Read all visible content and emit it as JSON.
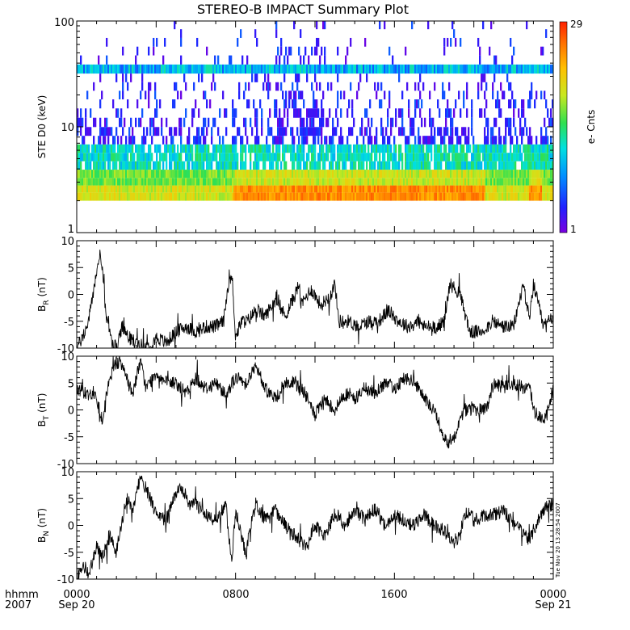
{
  "chart_data": {
    "title": "STEREO-B IMPACT Summary Plot",
    "panels": [
      {
        "type": "heatmap",
        "ylabel": "STE D0 (keV)",
        "yscale": "log",
        "ylim": [
          1,
          100
        ],
        "yticks": [
          "100",
          "10",
          "1"
        ],
        "colorbar": {
          "label": "e- Cnts",
          "min": 1,
          "max": 29,
          "min_label": "1",
          "max_label": "29",
          "colormap": [
            "#7a00e0",
            "#2020ff",
            "#0090ff",
            "#00e0e0",
            "#30e050",
            "#c8e820",
            "#ffc000",
            "#ff7000",
            "#ff2000"
          ]
        },
        "energy_bands_keV": [
          2.2,
          2.6,
          3.0,
          3.6,
          4.3,
          5.2,
          6.2,
          7.5,
          9,
          11,
          13.5,
          16.5,
          20,
          24,
          29,
          35,
          43,
          52,
          63,
          76,
          92
        ],
        "hot_period_hours": [
          [
            7.9,
            20.6
          ],
          [
            22.8,
            23.4
          ]
        ],
        "persistent_band_keV": 35
      },
      {
        "type": "line",
        "ylabel": "B",
        "ylabel_sub": "R",
        "ylabel_unit": "(nT)",
        "ylim": [
          -10,
          10
        ],
        "yticks": [
          "10",
          "5",
          "0",
          "-5",
          "-10"
        ],
        "x_hours": [
          0,
          0.3,
          0.6,
          0.9,
          1.2,
          1.5,
          1.8,
          2.0,
          2.3,
          2.6,
          3.0,
          3.5,
          4.0,
          4.5,
          5.0,
          5.5,
          6.0,
          6.5,
          7.0,
          7.4,
          7.7,
          7.85,
          8.0,
          8.3,
          8.6,
          9.0,
          9.5,
          10.0,
          10.5,
          11.0,
          11.2,
          11.3,
          11.8,
          12.3,
          12.8,
          13.0,
          13.2,
          13.7,
          14.2,
          14.7,
          15.2,
          15.7,
          16.2,
          16.7,
          17.2,
          17.5,
          17.7,
          18.2,
          18.5,
          18.8,
          19.3,
          19.8,
          20.3,
          20.7,
          20.9,
          21.5,
          22.0,
          22.5,
          22.8,
          23.0,
          23.5,
          24.0
        ],
        "values": [
          -10,
          -8,
          -5,
          2,
          8,
          -5,
          -9,
          -10,
          -6,
          -8,
          -9,
          -10,
          -8,
          -9,
          -7,
          -6,
          -7,
          -6,
          -6,
          -5,
          4,
          2,
          -8,
          -5,
          -5,
          -3,
          -4,
          -1,
          -4,
          0,
          2,
          -2,
          1,
          -2,
          0,
          2,
          -5,
          -5,
          -6,
          -5,
          -5,
          -3,
          -5,
          -6,
          -5,
          -6,
          -6,
          -6,
          -5,
          2,
          0,
          -7,
          -7,
          -6,
          -5,
          -6,
          -6,
          2,
          -5,
          2,
          -6,
          -4
        ]
      },
      {
        "type": "line",
        "ylabel": "B",
        "ylabel_sub": "T",
        "ylabel_unit": "(nT)",
        "ylim": [
          -10,
          10
        ],
        "yticks": [
          "10",
          "5",
          "0",
          "-5",
          "-10"
        ],
        "x_hours": [
          0,
          0.5,
          1.0,
          1.3,
          1.6,
          2.0,
          2.3,
          2.8,
          3.2,
          3.5,
          4.0,
          4.5,
          5.0,
          5.5,
          6.0,
          6.5,
          7.0,
          7.5,
          8.0,
          8.5,
          9.0,
          9.5,
          10.0,
          10.5,
          11.0,
          11.5,
          12.0,
          12.5,
          13.0,
          13.5,
          14.0,
          14.5,
          15.0,
          15.5,
          16.0,
          16.5,
          17.0,
          17.5,
          18.0,
          18.5,
          18.7,
          19.0,
          19.5,
          20.0,
          20.5,
          20.7,
          21.0,
          21.5,
          22.0,
          22.5,
          22.8,
          23.0,
          23.3,
          23.6,
          24.0
        ],
        "values": [
          4,
          3,
          2,
          -2,
          5,
          9,
          8,
          3,
          9,
          4,
          7,
          5,
          5,
          3,
          6,
          4,
          5,
          3,
          6,
          5,
          8,
          4,
          2,
          5,
          5,
          3,
          -1,
          2,
          0,
          3,
          2,
          4,
          3,
          5,
          4,
          6,
          5,
          2,
          0,
          -5,
          -6,
          -5,
          0,
          0,
          0,
          1,
          5,
          4,
          5,
          4,
          5,
          0,
          -1,
          -2,
          4
        ]
      },
      {
        "type": "line",
        "ylabel": "B",
        "ylabel_sub": "N",
        "ylabel_unit": "(nT)",
        "ylim": [
          -10,
          10
        ],
        "yticks": [
          "10",
          "5",
          "0",
          "-5",
          "-10"
        ],
        "x_hours": [
          0,
          0.3,
          0.6,
          1.0,
          1.3,
          1.7,
          2.0,
          2.5,
          2.8,
          3.2,
          3.6,
          4.0,
          4.5,
          5.0,
          5.3,
          5.7,
          6.0,
          6.5,
          7.0,
          7.5,
          7.8,
          8.0,
          8.5,
          9.0,
          9.5,
          10.0,
          10.5,
          11.0,
          11.5,
          12.0,
          12.5,
          13.0,
          13.5,
          14.0,
          14.5,
          15.0,
          15.5,
          16.0,
          16.5,
          17.0,
          17.5,
          18.0,
          18.5,
          19.0,
          19.3,
          19.5,
          19.8,
          20.0,
          20.5,
          21.0,
          21.5,
          22.0,
          22.5,
          22.8,
          23.0,
          23.5,
          24.0
        ],
        "values": [
          -10,
          -7,
          -9,
          -4,
          -6,
          -2,
          -5,
          5,
          3,
          9,
          6,
          2,
          1,
          6,
          7,
          4,
          4,
          2,
          1,
          4,
          -7,
          3,
          -5,
          4,
          1,
          3,
          0,
          -2,
          -4,
          0,
          -2,
          2,
          0,
          3,
          1,
          3,
          0,
          2,
          1,
          0,
          2,
          0,
          -1,
          -3,
          -2,
          2,
          2,
          1,
          2,
          2,
          3,
          0,
          -1,
          -3,
          -1,
          3,
          4
        ]
      }
    ],
    "x_axis": {
      "range_hours": [
        0,
        24
      ],
      "major_ticks_hours": [
        0,
        8,
        16,
        24
      ],
      "tick_labels": [
        "0000",
        "0800",
        "1600",
        "0000"
      ],
      "date_labels": [
        "Sep 20",
        "",
        "",
        "Sep 21"
      ],
      "left_labels": [
        "hhmm",
        "2007"
      ]
    },
    "stamp": "Tue Nov 20 13:28:54 2007"
  }
}
